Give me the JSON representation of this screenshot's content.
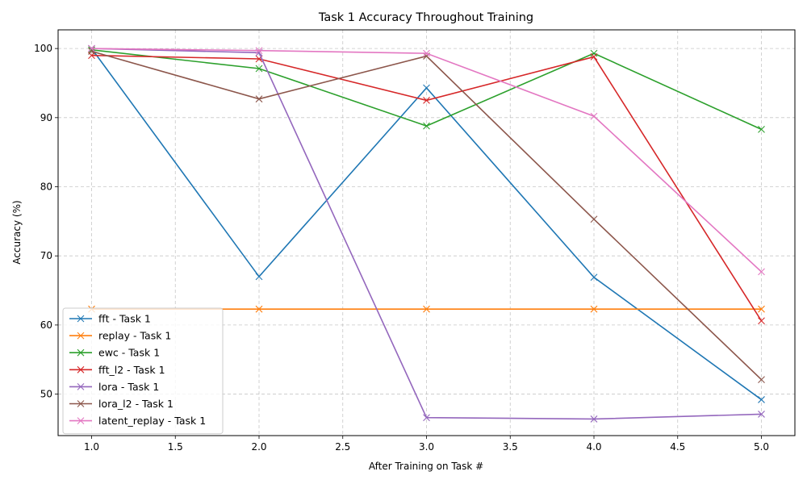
{
  "chart_data": {
    "type": "line",
    "title": "Task 1 Accuracy Throughout Training",
    "xlabel": "After Training on Task #",
    "ylabel": "Accuracy (%)",
    "x": [
      1,
      2,
      3,
      4,
      5
    ],
    "xlim": [
      0.8,
      5.2
    ],
    "ylim": [
      44,
      102.7
    ],
    "xticks": [
      "1.0",
      "1.5",
      "2.0",
      "2.5",
      "3.0",
      "3.5",
      "4.0",
      "4.5",
      "5.0"
    ],
    "xtick_values": [
      1.0,
      1.5,
      2.0,
      2.5,
      3.0,
      3.5,
      4.0,
      4.5,
      5.0
    ],
    "yticks": [
      "50",
      "60",
      "70",
      "80",
      "90",
      "100"
    ],
    "ytick_values": [
      50,
      60,
      70,
      80,
      90,
      100
    ],
    "grid": true,
    "legend_position": "lower-left",
    "marker": "x",
    "series": [
      {
        "name": "fft - Task 1",
        "color": "#1f77b4",
        "values": [
          100,
          67,
          94.3,
          66.9,
          49.2
        ]
      },
      {
        "name": "replay - Task 1",
        "color": "#ff7f0e",
        "values": [
          62.3,
          62.3,
          62.3,
          62.3,
          62.3
        ]
      },
      {
        "name": "ewc - Task 1",
        "color": "#2ca02c",
        "values": [
          99.8,
          97.1,
          88.8,
          99.3,
          88.3
        ]
      },
      {
        "name": "fft_l2 - Task 1",
        "color": "#d62728",
        "values": [
          99,
          98.5,
          92.5,
          98.8,
          60.6
        ]
      },
      {
        "name": "lora - Task 1",
        "color": "#9467bd",
        "values": [
          100,
          99.4,
          46.6,
          46.4,
          47.1
        ]
      },
      {
        "name": "lora_l2 - Task 1",
        "color": "#8c564b",
        "values": [
          99.6,
          92.7,
          98.9,
          75.3,
          52.1
        ]
      },
      {
        "name": "latent_replay - Task 1",
        "color": "#e377c2",
        "values": [
          100,
          99.7,
          99.3,
          90.2,
          67.7
        ]
      }
    ]
  }
}
